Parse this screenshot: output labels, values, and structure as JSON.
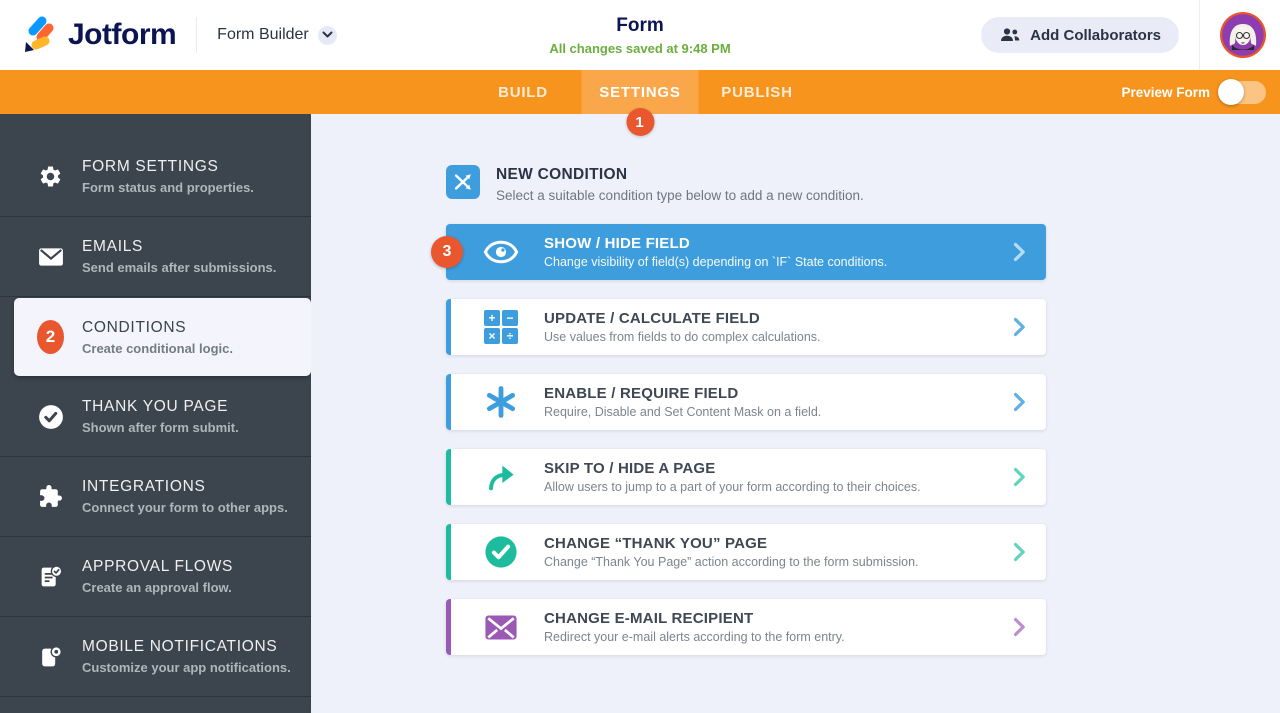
{
  "header": {
    "logo_text": "Jotform",
    "product": "Form Builder",
    "form_title": "Form",
    "save_status": "All changes saved at 9:48 PM",
    "add_collaborators": "Add Collaborators"
  },
  "navbar": {
    "tabs": [
      {
        "label": "BUILD",
        "active": false
      },
      {
        "label": "SETTINGS",
        "active": true,
        "badge": "1"
      },
      {
        "label": "PUBLISH",
        "active": false
      }
    ],
    "preview_label": "Preview Form",
    "preview_toggle_state": "off"
  },
  "sidebar": {
    "items": [
      {
        "label": "FORM SETTINGS",
        "desc": "Form status and properties.",
        "icon": "gear-icon",
        "active": false
      },
      {
        "label": "EMAILS",
        "desc": "Send emails after submissions.",
        "icon": "envelope-icon",
        "active": false
      },
      {
        "label": "CONDITIONS",
        "desc": "Create conditional logic.",
        "icon": "number-badge",
        "badge": "2",
        "active": true
      },
      {
        "label": "THANK YOU PAGE",
        "desc": "Shown after form submit.",
        "icon": "check-circle-icon",
        "active": false
      },
      {
        "label": "INTEGRATIONS",
        "desc": "Connect your form to other apps.",
        "icon": "puzzle-icon",
        "active": false
      },
      {
        "label": "APPROVAL FLOWS",
        "desc": "Create an approval flow.",
        "icon": "approval-doc-icon",
        "active": false
      },
      {
        "label": "MOBILE NOTIFICATIONS",
        "desc": "Customize your app notifications.",
        "icon": "mobile-bell-icon",
        "active": false
      }
    ]
  },
  "main": {
    "section": {
      "title": "NEW CONDITION",
      "subtitle": "Select a suitable condition type below to add a new condition.",
      "icon": "branch-arrows-icon"
    },
    "cards": [
      {
        "title": "SHOW / HIDE FIELD",
        "desc": "Change visibility of field(s) depending on `IF` State conditions.",
        "icon": "eye-icon",
        "color": "#3e9edd",
        "chevron_color": "#b5dcf4",
        "filled": true,
        "badge": "3"
      },
      {
        "title": "UPDATE / CALCULATE FIELD",
        "desc": "Use values from fields to do complex calculations.",
        "icon": "calculator-icon",
        "color": "#3e9edd",
        "chevron_color": "#5fb0e4",
        "filled": false
      },
      {
        "title": "ENABLE / REQUIRE FIELD",
        "desc": "Require, Disable and Set Content Mask on a field.",
        "icon": "asterisk-icon",
        "color": "#3e9edd",
        "chevron_color": "#5fb0e4",
        "filled": false
      },
      {
        "title": "SKIP TO / HIDE A PAGE",
        "desc": "Allow users to jump to a part of your form according to their choices.",
        "icon": "skip-arrow-icon",
        "color": "#1ebc9e",
        "chevron_color": "#62d3bc",
        "filled": false
      },
      {
        "title": "CHANGE “THANK YOU” PAGE",
        "desc": "Change “Thank You Page” action according to the form submission.",
        "icon": "check-circle-green-icon",
        "color": "#1ebc9e",
        "chevron_color": "#62d3bc",
        "filled": false
      },
      {
        "title": "CHANGE E-MAIL RECIPIENT",
        "desc": "Redirect your e-mail alerts according to the form entry.",
        "icon": "envelope-purple-icon",
        "color": "#9b59b6",
        "chevron_color": "#bc8fd1",
        "filled": false
      }
    ]
  },
  "colors": {
    "navbar_orange": "#f7941e",
    "active_tab_orange": "#f9a74a",
    "badge_red_orange": "#e9572f",
    "condition_blue": "#3e9edd",
    "condition_green": "#1ebc9e",
    "condition_purple": "#9b59b6",
    "sidebar_dark": "#3c454e",
    "saved_green": "#6cae3e",
    "navy": "#0a1551"
  }
}
